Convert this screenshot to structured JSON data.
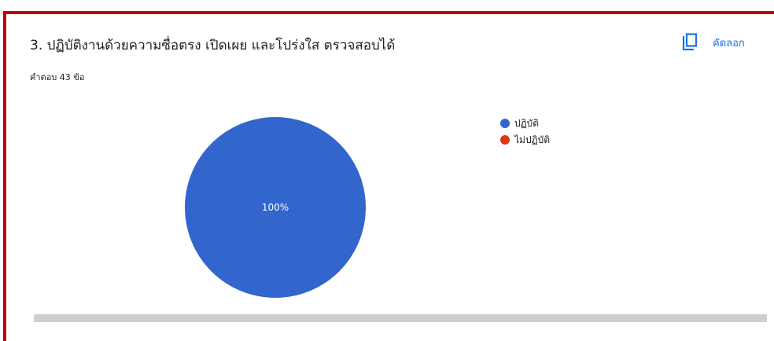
{
  "question": {
    "title": "3.  ปฏิบัติงานด้วยความซื่อตรง เปิดเผย และโปร่งใส ตรวจสอบได้",
    "response_count": "คำตอบ 43 ข้อ"
  },
  "toolbar": {
    "copy_label": "คัดลอก",
    "copy_icon": "copy-icon"
  },
  "colors": {
    "frame": "#c00000",
    "accent": "#1a73e8"
  },
  "chart_data": {
    "type": "pie",
    "categories": [
      "ปฏิบัติ",
      "ไม่ปฏิบัติ"
    ],
    "values": [
      100,
      0
    ],
    "slice_labels": [
      "100%",
      ""
    ],
    "colors": [
      "#3366cc",
      "#dc3912"
    ],
    "legend_position": "right"
  }
}
